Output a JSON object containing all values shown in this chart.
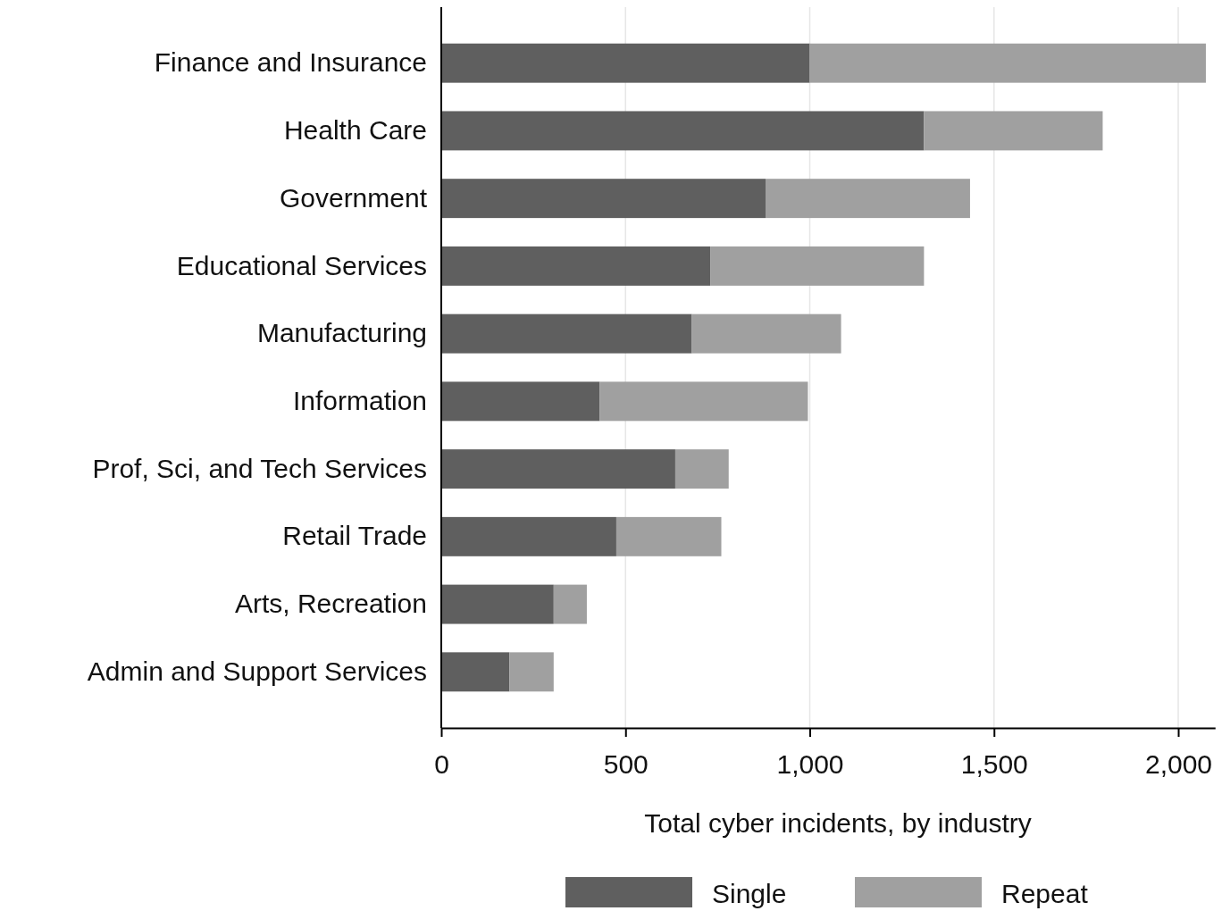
{
  "chart_data": {
    "type": "bar",
    "orientation": "horizontal",
    "stacked": true,
    "xlabel": "Total cyber incidents, by industry",
    "categories": [
      "Finance and Insurance",
      "Health Care",
      "Government",
      "Educational Services",
      "Manufacturing",
      "Information",
      "Prof, Sci, and Tech Services",
      "Retail Trade",
      "Arts, Recreation",
      "Admin and Support Services"
    ],
    "series": [
      {
        "name": "Single",
        "color": "#5f5f5f",
        "values": [
          1000,
          1310,
          880,
          730,
          680,
          430,
          635,
          475,
          305,
          185
        ]
      },
      {
        "name": "Repeat",
        "color": "#a0a0a0",
        "values": [
          1075,
          485,
          555,
          580,
          405,
          565,
          145,
          285,
          90,
          120
        ]
      }
    ],
    "xlim": [
      0,
      2100
    ],
    "xticks": [
      0,
      500,
      {
        "value": 1000,
        "label": "1,000"
      },
      {
        "value": 1500,
        "label": "1,500"
      },
      {
        "value": 2000,
        "label": "2,000"
      }
    ],
    "grid": "x",
    "legend": "bottom"
  }
}
